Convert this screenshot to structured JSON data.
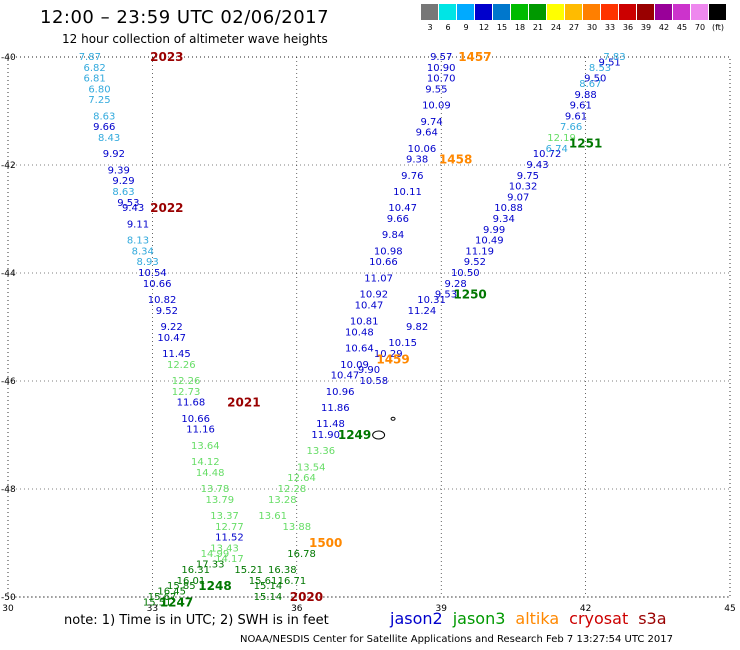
{
  "header": {
    "title": "12:00 – 23:59 UTC 02/06/2017",
    "subtitle": "12 hour collection of altimeter wave heights"
  },
  "colorbar": {
    "labels": [
      "3",
      "6",
      "9",
      "12",
      "15",
      "18",
      "21",
      "24",
      "27",
      "30",
      "33",
      "36",
      "39",
      "42",
      "45",
      "70",
      "(ft)"
    ],
    "colors": [
      "#777777",
      "#00e5e5",
      "#00aaff",
      "#0000cc",
      "#0077cc",
      "#00bb00",
      "#009900",
      "#ffff00",
      "#ffbb00",
      "#ff7f00",
      "#ff3300",
      "#cc0000",
      "#990000",
      "#990099",
      "#cc33cc",
      "#ee88ee",
      "#000000"
    ]
  },
  "footer": {
    "note": "note: 1) Time is in UTC; 2) SWH is in feet",
    "credit": "NOAA/NESDIS Center for Satellite Applications and Research   Feb  7 13:27:54 UTC 2017"
  },
  "legend": [
    {
      "name": "jason2",
      "color": "#0000cc"
    },
    {
      "name": "jason3",
      "color": "#009900"
    },
    {
      "name": "altika",
      "color": "#ff8800"
    },
    {
      "name": "cryosat",
      "color": "#cc0000"
    },
    {
      "name": "s3a",
      "color": "#990000"
    }
  ],
  "chart_data": {
    "type": "scatter",
    "xlim": [
      30,
      45
    ],
    "ylim": [
      -50,
      -40
    ],
    "x_ticks": [
      "30",
      "33",
      "36",
      "39",
      "42",
      "45"
    ],
    "y_ticks": [
      "-40",
      "-42",
      "-44",
      "-46",
      "-48",
      "-50"
    ],
    "grid": true,
    "labels": [
      {
        "x": 31.7,
        "y": -40.0,
        "text": "7.87",
        "color": "#33aadd"
      },
      {
        "x": 31.8,
        "y": -40.2,
        "text": "6.82",
        "color": "#33aadd"
      },
      {
        "x": 31.8,
        "y": -40.4,
        "text": "6.81",
        "color": "#33aadd"
      },
      {
        "x": 31.9,
        "y": -40.6,
        "text": "6.80",
        "color": "#33aadd"
      },
      {
        "x": 31.9,
        "y": -40.8,
        "text": "7.25",
        "color": "#33aadd"
      },
      {
        "x": 32.0,
        "y": -41.1,
        "text": "8.63",
        "color": "#33aadd"
      },
      {
        "x": 32.0,
        "y": -41.3,
        "text": "9.66",
        "color": "#0000cc"
      },
      {
        "x": 32.1,
        "y": -41.5,
        "text": "8.43",
        "color": "#33aadd"
      },
      {
        "x": 32.2,
        "y": -41.8,
        "text": "9.92",
        "color": "#0000cc"
      },
      {
        "x": 32.3,
        "y": -42.1,
        "text": "9.39",
        "color": "#0000cc"
      },
      {
        "x": 32.4,
        "y": -42.3,
        "text": "9.29",
        "color": "#0000cc"
      },
      {
        "x": 32.4,
        "y": -42.5,
        "text": "8.63",
        "color": "#33aadd"
      },
      {
        "x": 32.5,
        "y": -42.7,
        "text": "9.53",
        "color": "#0000cc"
      },
      {
        "x": 32.6,
        "y": -42.8,
        "text": "9.43",
        "color": "#0000cc"
      },
      {
        "x": 32.7,
        "y": -43.1,
        "text": "9.11",
        "color": "#0000cc"
      },
      {
        "x": 32.7,
        "y": -43.4,
        "text": "8.13",
        "color": "#33aadd"
      },
      {
        "x": 32.8,
        "y": -43.6,
        "text": "8.34",
        "color": "#33aadd"
      },
      {
        "x": 32.9,
        "y": -43.8,
        "text": "8.93",
        "color": "#33aadd"
      },
      {
        "x": 33.0,
        "y": -44.0,
        "text": "10.54",
        "color": "#0000cc"
      },
      {
        "x": 33.1,
        "y": -44.2,
        "text": "10.66",
        "color": "#0000cc"
      },
      {
        "x": 33.2,
        "y": -44.5,
        "text": "10.82",
        "color": "#0000cc"
      },
      {
        "x": 33.3,
        "y": -44.7,
        "text": "9.52",
        "color": "#0000cc"
      },
      {
        "x": 33.4,
        "y": -45.0,
        "text": "9.22",
        "color": "#0000cc"
      },
      {
        "x": 33.4,
        "y": -45.2,
        "text": "10.47",
        "color": "#0000cc"
      },
      {
        "x": 33.5,
        "y": -45.5,
        "text": "11.45",
        "color": "#0000cc"
      },
      {
        "x": 33.6,
        "y": -45.7,
        "text": "12.26",
        "color": "#66dd66"
      },
      {
        "x": 33.7,
        "y": -46.0,
        "text": "12.26",
        "color": "#66dd66"
      },
      {
        "x": 33.7,
        "y": -46.2,
        "text": "12.73",
        "color": "#66dd66"
      },
      {
        "x": 33.8,
        "y": -46.4,
        "text": "11.68",
        "color": "#0000cc"
      },
      {
        "x": 33.9,
        "y": -46.7,
        "text": "10.66",
        "color": "#0000cc"
      },
      {
        "x": 34.0,
        "y": -46.9,
        "text": "11.16",
        "color": "#0000cc"
      },
      {
        "x": 34.1,
        "y": -47.2,
        "text": "13.64",
        "color": "#66dd66"
      },
      {
        "x": 34.1,
        "y": -47.5,
        "text": "14.12",
        "color": "#66dd66"
      },
      {
        "x": 34.2,
        "y": -47.7,
        "text": "14.48",
        "color": "#66dd66"
      },
      {
        "x": 34.3,
        "y": -48.0,
        "text": "13.78",
        "color": "#66dd66"
      },
      {
        "x": 34.4,
        "y": -48.2,
        "text": "13.79",
        "color": "#66dd66"
      },
      {
        "x": 34.5,
        "y": -48.5,
        "text": "13.37",
        "color": "#66dd66"
      },
      {
        "x": 34.6,
        "y": -48.7,
        "text": "12.77",
        "color": "#66dd66"
      },
      {
        "x": 34.6,
        "y": -48.9,
        "text": "11.52",
        "color": "#0000cc"
      },
      {
        "x": 34.5,
        "y": -49.1,
        "text": "13.43",
        "color": "#66dd66"
      },
      {
        "x": 34.3,
        "y": -49.2,
        "text": "14.99",
        "color": "#66dd66"
      },
      {
        "x": 34.6,
        "y": -49.3,
        "text": "14.17",
        "color": "#66dd66"
      },
      {
        "x": 34.2,
        "y": -49.4,
        "text": "17.33",
        "color": "#007700"
      },
      {
        "x": 33.9,
        "y": -49.5,
        "text": "16.31",
        "color": "#007700"
      },
      {
        "x": 33.8,
        "y": -49.7,
        "text": "16.01",
        "color": "#007700"
      },
      {
        "x": 33.6,
        "y": -49.8,
        "text": "15.85",
        "color": "#007700"
      },
      {
        "x": 33.4,
        "y": -49.9,
        "text": "16.45",
        "color": "#007700"
      },
      {
        "x": 33.2,
        "y": -50.0,
        "text": "15.67",
        "color": "#007700"
      },
      {
        "x": 33.1,
        "y": -50.1,
        "text": "15.51",
        "color": "#007700"
      },
      {
        "x": 35.0,
        "y": -49.5,
        "text": "15.21",
        "color": "#007700"
      },
      {
        "x": 35.3,
        "y": -49.7,
        "text": "15.61",
        "color": "#007700"
      },
      {
        "x": 35.4,
        "y": -49.8,
        "text": "15.14",
        "color": "#007700"
      },
      {
        "x": 35.4,
        "y": -50.0,
        "text": "15.14",
        "color": "#007700"
      },
      {
        "x": 35.7,
        "y": -49.5,
        "text": "16.38",
        "color": "#007700"
      },
      {
        "x": 36.1,
        "y": -49.2,
        "text": "16.78",
        "color": "#007700"
      },
      {
        "x": 35.9,
        "y": -49.7,
        "text": "16.71",
        "color": "#007700"
      },
      {
        "x": 35.5,
        "y": -48.5,
        "text": "13.61",
        "color": "#66dd66"
      },
      {
        "x": 35.9,
        "y": -48.0,
        "text": "12.28",
        "color": "#66dd66"
      },
      {
        "x": 35.7,
        "y": -48.2,
        "text": "13.28",
        "color": "#66dd66"
      },
      {
        "x": 36.0,
        "y": -48.7,
        "text": "13.88",
        "color": "#66dd66"
      },
      {
        "x": 36.1,
        "y": -47.8,
        "text": "12.64",
        "color": "#66dd66"
      },
      {
        "x": 36.3,
        "y": -47.6,
        "text": "13.54",
        "color": "#66dd66"
      },
      {
        "x": 36.5,
        "y": -47.3,
        "text": "13.36",
        "color": "#66dd66"
      },
      {
        "x": 36.6,
        "y": -47.0,
        "text": "11.90",
        "color": "#0000cc"
      },
      {
        "x": 36.7,
        "y": -46.8,
        "text": "11.48",
        "color": "#0000cc"
      },
      {
        "x": 36.8,
        "y": -46.5,
        "text": "11.86",
        "color": "#0000cc"
      },
      {
        "x": 36.9,
        "y": -46.2,
        "text": "10.96",
        "color": "#0000cc"
      },
      {
        "x": 37.0,
        "y": -45.9,
        "text": "10.47",
        "color": "#0000cc"
      },
      {
        "x": 37.2,
        "y": -45.7,
        "text": "10.09",
        "color": "#0000cc"
      },
      {
        "x": 37.3,
        "y": -45.4,
        "text": "10.64",
        "color": "#0000cc"
      },
      {
        "x": 37.3,
        "y": -45.1,
        "text": "10.48",
        "color": "#0000cc"
      },
      {
        "x": 37.4,
        "y": -44.9,
        "text": "10.81",
        "color": "#0000cc"
      },
      {
        "x": 37.5,
        "y": -44.6,
        "text": "10.47",
        "color": "#0000cc"
      },
      {
        "x": 37.6,
        "y": -44.4,
        "text": "10.92",
        "color": "#0000cc"
      },
      {
        "x": 37.7,
        "y": -44.1,
        "text": "11.07",
        "color": "#0000cc"
      },
      {
        "x": 37.8,
        "y": -43.8,
        "text": "10.66",
        "color": "#0000cc"
      },
      {
        "x": 37.9,
        "y": -43.6,
        "text": "10.98",
        "color": "#0000cc"
      },
      {
        "x": 38.0,
        "y": -43.3,
        "text": "9.84",
        "color": "#0000cc"
      },
      {
        "x": 38.1,
        "y": -43.0,
        "text": "9.66",
        "color": "#0000cc"
      },
      {
        "x": 38.2,
        "y": -42.8,
        "text": "10.47",
        "color": "#0000cc"
      },
      {
        "x": 38.3,
        "y": -42.5,
        "text": "10.11",
        "color": "#0000cc"
      },
      {
        "x": 38.4,
        "y": -42.2,
        "text": "9.76",
        "color": "#0000cc"
      },
      {
        "x": 38.5,
        "y": -41.9,
        "text": "9.38",
        "color": "#0000cc"
      },
      {
        "x": 38.6,
        "y": -41.7,
        "text": "10.06",
        "color": "#0000cc"
      },
      {
        "x": 38.7,
        "y": -41.4,
        "text": "9.64",
        "color": "#0000cc"
      },
      {
        "x": 38.8,
        "y": -41.2,
        "text": "9.74",
        "color": "#0000cc"
      },
      {
        "x": 38.9,
        "y": -40.9,
        "text": "10.09",
        "color": "#0000cc"
      },
      {
        "x": 38.9,
        "y": -40.6,
        "text": "9.55",
        "color": "#0000cc"
      },
      {
        "x": 39.0,
        "y": -40.4,
        "text": "10.70",
        "color": "#0000cc"
      },
      {
        "x": 39.0,
        "y": -40.2,
        "text": "10.90",
        "color": "#0000cc"
      },
      {
        "x": 39.0,
        "y": -40.0,
        "text": "9.57",
        "color": "#0000cc"
      },
      {
        "x": 37.6,
        "y": -46.0,
        "text": "10.58",
        "color": "#0000cc"
      },
      {
        "x": 37.5,
        "y": -45.8,
        "text": "9.90",
        "color": "#0000cc"
      },
      {
        "x": 37.9,
        "y": -45.5,
        "text": "10.29",
        "color": "#0000cc"
      },
      {
        "x": 38.2,
        "y": -45.3,
        "text": "10.15",
        "color": "#0000cc"
      },
      {
        "x": 38.5,
        "y": -45.0,
        "text": "9.82",
        "color": "#0000cc"
      },
      {
        "x": 38.6,
        "y": -44.7,
        "text": "11.24",
        "color": "#0000cc"
      },
      {
        "x": 38.8,
        "y": -44.5,
        "text": "10.31",
        "color": "#0000cc"
      },
      {
        "x": 39.1,
        "y": -44.4,
        "text": "9.53",
        "color": "#0000cc"
      },
      {
        "x": 39.3,
        "y": -44.2,
        "text": "9.28",
        "color": "#0000cc"
      },
      {
        "x": 39.5,
        "y": -44.0,
        "text": "10.50",
        "color": "#0000cc"
      },
      {
        "x": 39.7,
        "y": -43.8,
        "text": "9.52",
        "color": "#0000cc"
      },
      {
        "x": 39.8,
        "y": -43.6,
        "text": "11.19",
        "color": "#0000cc"
      },
      {
        "x": 40.0,
        "y": -43.4,
        "text": "10.49",
        "color": "#0000cc"
      },
      {
        "x": 40.1,
        "y": -43.2,
        "text": "9.99",
        "color": "#0000cc"
      },
      {
        "x": 40.3,
        "y": -43.0,
        "text": "9.34",
        "color": "#0000cc"
      },
      {
        "x": 40.4,
        "y": -42.8,
        "text": "10.88",
        "color": "#0000cc"
      },
      {
        "x": 40.6,
        "y": -42.6,
        "text": "9.07",
        "color": "#0000cc"
      },
      {
        "x": 40.7,
        "y": -42.4,
        "text": "10.32",
        "color": "#0000cc"
      },
      {
        "x": 40.8,
        "y": -42.2,
        "text": "9.75",
        "color": "#0000cc"
      },
      {
        "x": 41.0,
        "y": -42.0,
        "text": "9.43",
        "color": "#0000cc"
      },
      {
        "x": 41.2,
        "y": -41.8,
        "text": "10.72",
        "color": "#0000cc"
      },
      {
        "x": 41.4,
        "y": -41.7,
        "text": "6.74",
        "color": "#33aadd"
      },
      {
        "x": 41.5,
        "y": -41.5,
        "text": "12.19",
        "color": "#66dd66"
      },
      {
        "x": 41.7,
        "y": -41.3,
        "text": "7.66",
        "color": "#33aadd"
      },
      {
        "x": 41.8,
        "y": -41.1,
        "text": "9.61",
        "color": "#0000cc"
      },
      {
        "x": 41.9,
        "y": -40.9,
        "text": "9.61",
        "color": "#0000cc"
      },
      {
        "x": 42.0,
        "y": -40.7,
        "text": "9.88",
        "color": "#0000cc"
      },
      {
        "x": 42.1,
        "y": -40.5,
        "text": "8.67",
        "color": "#33aadd"
      },
      {
        "x": 42.2,
        "y": -40.4,
        "text": "9.50",
        "color": "#0000cc"
      },
      {
        "x": 42.3,
        "y": -40.2,
        "text": "8.53",
        "color": "#33aadd"
      },
      {
        "x": 42.5,
        "y": -40.1,
        "text": "9.51",
        "color": "#0000cc"
      },
      {
        "x": 42.6,
        "y": -40.0,
        "text": "7.83",
        "color": "#33aadd"
      }
    ],
    "pass_labels": [
      {
        "x": 33.3,
        "y": -40.0,
        "text": "2023",
        "color": "#990000"
      },
      {
        "x": 33.3,
        "y": -42.8,
        "text": "2022",
        "color": "#990000"
      },
      {
        "x": 34.9,
        "y": -46.4,
        "text": "2021",
        "color": "#990000"
      },
      {
        "x": 36.2,
        "y": -50.0,
        "text": "2020",
        "color": "#990000"
      },
      {
        "x": 34.3,
        "y": -49.8,
        "text": "1248",
        "color": "#007700"
      },
      {
        "x": 33.5,
        "y": -50.1,
        "text": "1247",
        "color": "#007700"
      },
      {
        "x": 37.2,
        "y": -47.0,
        "text": "1249",
        "color": "#007700"
      },
      {
        "x": 39.6,
        "y": -44.4,
        "text": "1250",
        "color": "#007700"
      },
      {
        "x": 42.0,
        "y": -41.6,
        "text": "1251",
        "color": "#007700"
      },
      {
        "x": 39.7,
        "y": -40.0,
        "text": "1457",
        "color": "#ff8800"
      },
      {
        "x": 39.3,
        "y": -41.9,
        "text": "1458",
        "color": "#ff8800"
      },
      {
        "x": 38.0,
        "y": -45.6,
        "text": "1459",
        "color": "#ff8800"
      },
      {
        "x": 36.6,
        "y": -49.0,
        "text": "1500",
        "color": "#ff8800"
      }
    ]
  }
}
